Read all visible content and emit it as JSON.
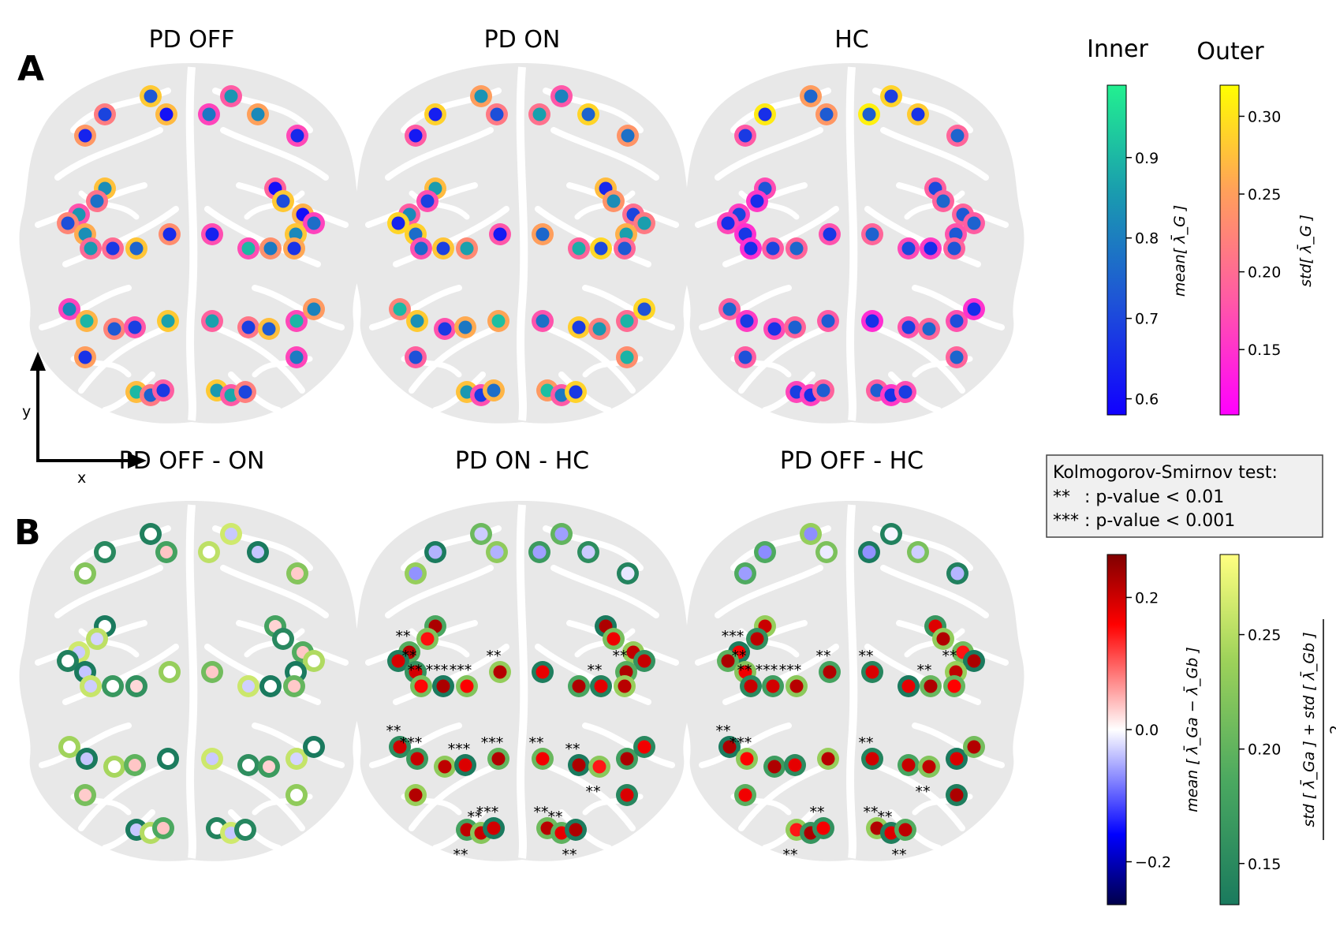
{
  "figure": {
    "panel_labels": [
      "A",
      "B"
    ],
    "axis_arrow": {
      "x": "x",
      "y": "y"
    },
    "legend_box": {
      "title": "Kolmogorov-Smirnov test:",
      "lines": [
        {
          "marker": "**",
          "text": ": p-value < 0.01"
        },
        {
          "marker": "***",
          "text": ": p-value < 0.001"
        }
      ]
    },
    "colors": {
      "brain": "#e6e6e6",
      "brain_line": "#ffffff"
    }
  },
  "chart_data": [
    {
      "type": "scatter",
      "title": "PD OFF",
      "row": "A",
      "markers": [
        {
          "x": -0.6,
          "y": 3.9,
          "inner": "#1446dc",
          "outer": "#e84fc8"
        },
        {
          "x": -1.8,
          "y": 4.9,
          "inner": "#22e0a0",
          "outer": "#f7a86e"
        },
        {
          "x": -1.4,
          "y": 4.35,
          "inner": "#1c8cc4",
          "outer": "#ff40ef"
        }
      ]
    },
    {
      "type": "scatter",
      "title": "PD ON",
      "row": "A",
      "markers": []
    },
    {
      "type": "scatter",
      "title": "HC",
      "row": "A",
      "markers": []
    },
    {
      "type": "scatter",
      "title": "PD OFF - ON",
      "row": "B",
      "markers": []
    },
    {
      "type": "scatter",
      "title": "PD ON - HC",
      "row": "B",
      "markers": []
    },
    {
      "type": "scatter",
      "title": "PD OFF - HC",
      "row": "B",
      "markers": []
    },
    {
      "type": "colorbar",
      "title": "Inner",
      "ylabel": "mean[ λ̄_G ]",
      "ylim": [
        0.58,
        0.99
      ],
      "ticks": [
        "0.6",
        "0.7",
        "0.8",
        "0.9"
      ],
      "tick_values": [
        0.6,
        0.7,
        0.8,
        0.9
      ],
      "colormap": [
        "#1100ff",
        "#1e55d6",
        "#1a9dae",
        "#22f090"
      ]
    },
    {
      "type": "colorbar",
      "title": "Outer",
      "ylabel": "std[ λ̄_G ]",
      "ylim": [
        0.108,
        0.32
      ],
      "ticks": [
        "0.15",
        "0.20",
        "0.25",
        "0.30"
      ],
      "tick_values": [
        0.15,
        0.2,
        0.25,
        0.3
      ],
      "colormap": [
        "#ff00ff",
        "#ff5aa5",
        "#ffa05a",
        "#ffff00"
      ]
    },
    {
      "type": "colorbar",
      "title": "",
      "ylabel": "mean [ λ̄_Ga − λ̄_Gb ]",
      "ylim": [
        -0.265,
        0.265
      ],
      "ticks": [
        "−0.2",
        "0.0",
        "0.2"
      ],
      "tick_values": [
        -0.2,
        0.0,
        0.2
      ],
      "colormap": [
        "#00004a",
        "#0000ff",
        "#ffffff",
        "#ff0000",
        "#800000"
      ]
    },
    {
      "type": "colorbar",
      "title": "",
      "ylabel": "std [ λ̄_Ga ] + std [ λ̄_Gb ]",
      "ylabel_den": "2",
      "ylim": [
        0.132,
        0.285
      ],
      "ticks": [
        "0.15",
        "0.20",
        "0.25"
      ],
      "tick_values": [
        0.15,
        0.2,
        0.25
      ],
      "colormap": [
        "#1a7a5e",
        "#4aa860",
        "#9ed25a",
        "#ffff80"
      ]
    }
  ]
}
